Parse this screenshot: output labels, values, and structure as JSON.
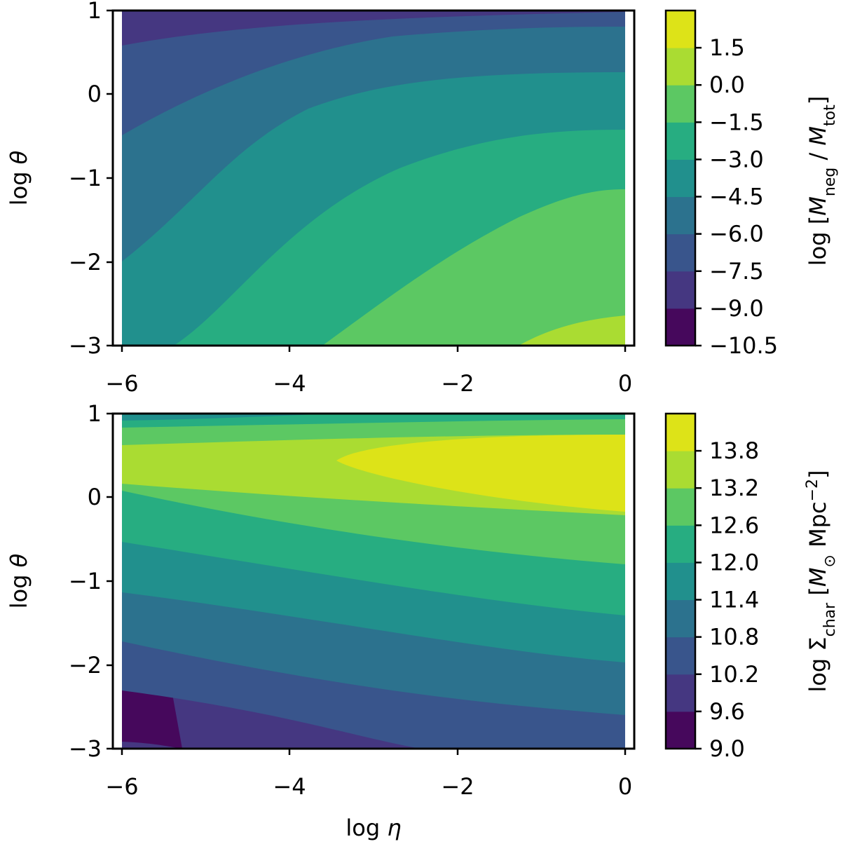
{
  "chart_data": [
    {
      "type": "contour",
      "xlabel": "",
      "ylabel": "log θ",
      "xlim": [
        -6,
        0
      ],
      "ylim": [
        -3,
        1
      ],
      "xticks": [
        "−6",
        "−4",
        "−2",
        "0"
      ],
      "yticks": [
        "1",
        "0",
        "−1",
        "−2",
        "−3"
      ],
      "colorbar": {
        "label": "log [M_neg / M_tot]",
        "levels": [
          -10.5,
          -9.0,
          -7.5,
          -6.0,
          -4.5,
          -3.0,
          -1.5,
          0.0,
          1.5
        ],
        "tick_labels": [
          "−10.5",
          "−9.0",
          "−7.5",
          "−6.0",
          "−4.5",
          "−3.0",
          "−1.5",
          "0.0",
          "1.5"
        ],
        "colors": [
          "#46085c",
          "#453781",
          "#39558c",
          "#2c728e",
          "#21908d",
          "#27ad81",
          "#5cc863",
          "#aadc32",
          "#dde318"
        ]
      },
      "level_boundaries": [
        {
          "between": [
            -3.0,
            -1.5
          ],
          "points": [
            [
              -5.5,
              -3
            ],
            [
              -4.0,
              -2.5
            ],
            [
              -2.5,
              -1.9
            ],
            [
              -1.5,
              -1.3
            ],
            [
              0,
              -1.1
            ]
          ]
        },
        {
          "between": [
            0.0,
            1.5
          ],
          "points": [
            [
              -1.3,
              -3
            ],
            [
              -0.8,
              -2.75
            ],
            [
              0,
              -2.65
            ]
          ]
        }
      ]
    },
    {
      "type": "contour",
      "xlabel": "log η",
      "ylabel": "log θ",
      "xlim": [
        -6,
        0
      ],
      "ylim": [
        -3,
        1
      ],
      "xticks": [
        "−6",
        "−4",
        "−2",
        "0"
      ],
      "yticks": [
        "1",
        "0",
        "−1",
        "−2",
        "−3"
      ],
      "colorbar": {
        "label": "log Σ_char [M⊙ Mpc⁻²]",
        "levels": [
          9.0,
          9.6,
          10.2,
          10.8,
          11.4,
          12.0,
          12.6,
          13.2,
          13.8
        ],
        "tick_labels": [
          "9.0",
          "9.6",
          "10.2",
          "10.8",
          "11.4",
          "12.0",
          "12.6",
          "13.2",
          "13.8"
        ],
        "colors": [
          "#46085c",
          "#453781",
          "#39558c",
          "#2c728e",
          "#21908d",
          "#27ad81",
          "#5cc863",
          "#aadc32",
          "#dde318"
        ]
      },
      "peak": {
        "x": [
          -3.4,
          0
        ],
        "y": [
          -0.2,
          0.7
        ],
        "band": [
          13.2,
          13.8
        ]
      }
    }
  ],
  "labels": {
    "top_ylabel_main": "log",
    "top_ylabel_sym": "θ",
    "bot_ylabel_main": "log",
    "bot_ylabel_sym": "θ",
    "xlabel_main": "log",
    "xlabel_sym": "η",
    "cbar1_label": {
      "pre": "log",
      "M1": "M",
      "sub1": "neg",
      "slash": "/",
      "M2": "M",
      "sub2": "tot"
    },
    "cbar2_label": {
      "pre": "log",
      "Sigma": "Σ",
      "sub": "char",
      "M": "M",
      "odot": "⊙",
      "unit": "Mpc",
      "sup": "−2"
    }
  }
}
